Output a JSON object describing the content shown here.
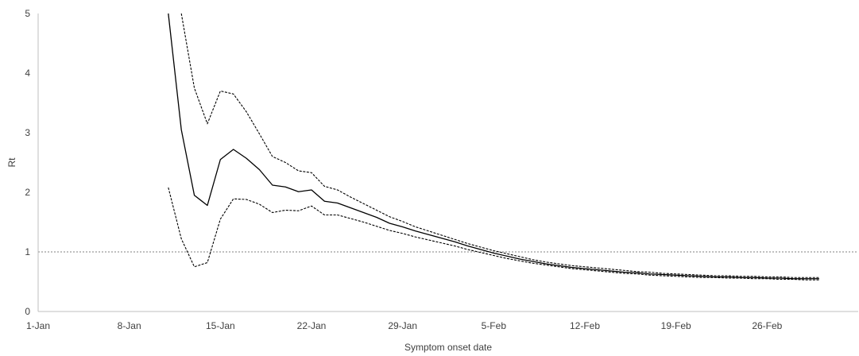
{
  "chart_data": {
    "type": "line",
    "title": "",
    "xlabel": "Symptom onset date",
    "ylabel": "Rt",
    "x_axis": {
      "type": "date",
      "range": [
        "2020-01-01",
        "2020-03-04"
      ],
      "ticks": [
        {
          "date": "2020-01-01",
          "label": "1-Jan"
        },
        {
          "date": "2020-01-08",
          "label": "8-Jan"
        },
        {
          "date": "2020-01-15",
          "label": "15-Jan"
        },
        {
          "date": "2020-01-22",
          "label": "22-Jan"
        },
        {
          "date": "2020-01-29",
          "label": "29-Jan"
        },
        {
          "date": "2020-02-05",
          "label": "5-Feb"
        },
        {
          "date": "2020-02-12",
          "label": "12-Feb"
        },
        {
          "date": "2020-02-19",
          "label": "19-Feb"
        },
        {
          "date": "2020-02-26",
          "label": "26-Feb"
        }
      ]
    },
    "y_axis": {
      "range": [
        0,
        5
      ],
      "ticks": [
        {
          "value": 0,
          "label": "0"
        },
        {
          "value": 1,
          "label": "1"
        },
        {
          "value": 2,
          "label": "2"
        },
        {
          "value": 3,
          "label": "3"
        },
        {
          "value": 4,
          "label": "4"
        },
        {
          "value": 5,
          "label": "5"
        }
      ]
    },
    "grid": false,
    "legend": "none",
    "reference_line": {
      "y": 1,
      "style": "dashed",
      "color": "#808080"
    },
    "series": [
      {
        "role": "estimate",
        "style": "solid",
        "color": "#000000",
        "points": [
          [
            "2020-01-11",
            5.0
          ],
          [
            "2020-01-12",
            3.05
          ],
          [
            "2020-01-13",
            1.95
          ],
          [
            "2020-01-14",
            1.78
          ],
          [
            "2020-01-15",
            2.55
          ],
          [
            "2020-01-16",
            2.72
          ],
          [
            "2020-01-17",
            2.57
          ],
          [
            "2020-01-18",
            2.38
          ],
          [
            "2020-01-19",
            2.12
          ],
          [
            "2020-01-20",
            2.09
          ],
          [
            "2020-01-21",
            2.01
          ],
          [
            "2020-01-22",
            2.04
          ],
          [
            "2020-01-23",
            1.85
          ],
          [
            "2020-01-24",
            1.82
          ],
          [
            "2020-01-25",
            1.74
          ],
          [
            "2020-01-26",
            1.66
          ],
          [
            "2020-01-27",
            1.58
          ],
          [
            "2020-01-28",
            1.48
          ],
          [
            "2020-01-29",
            1.42
          ],
          [
            "2020-01-30",
            1.35
          ],
          [
            "2020-01-31",
            1.29
          ],
          [
            "2020-02-01",
            1.23
          ],
          [
            "2020-02-02",
            1.17
          ],
          [
            "2020-02-03",
            1.1
          ],
          [
            "2020-02-04",
            1.04
          ],
          [
            "2020-02-05",
            0.98
          ],
          [
            "2020-02-06",
            0.93
          ],
          [
            "2020-02-07",
            0.88
          ],
          [
            "2020-02-08",
            0.84
          ],
          [
            "2020-02-09",
            0.8
          ],
          [
            "2020-02-10",
            0.77
          ],
          [
            "2020-02-11",
            0.74
          ],
          [
            "2020-02-12",
            0.72
          ],
          [
            "2020-02-13",
            0.7
          ],
          [
            "2020-02-14",
            0.68
          ],
          [
            "2020-02-15",
            0.66
          ],
          [
            "2020-02-16",
            0.65
          ],
          [
            "2020-02-17",
            0.63
          ],
          [
            "2020-02-18",
            0.62
          ],
          [
            "2020-02-19",
            0.61
          ],
          [
            "2020-02-20",
            0.6
          ],
          [
            "2020-02-21",
            0.59
          ],
          [
            "2020-02-22",
            0.58
          ],
          [
            "2020-02-23",
            0.58
          ],
          [
            "2020-02-24",
            0.57
          ],
          [
            "2020-02-25",
            0.57
          ],
          [
            "2020-02-26",
            0.56
          ],
          [
            "2020-02-27",
            0.56
          ],
          [
            "2020-02-28",
            0.55
          ],
          [
            "2020-02-29",
            0.55
          ],
          [
            "2020-03-01",
            0.55
          ]
        ]
      },
      {
        "role": "upper-bound",
        "style": "dashed",
        "color": "#000000",
        "points": [
          [
            "2020-01-12",
            5.0
          ],
          [
            "2020-01-13",
            3.75
          ],
          [
            "2020-01-14",
            3.15
          ],
          [
            "2020-01-15",
            3.7
          ],
          [
            "2020-01-16",
            3.65
          ],
          [
            "2020-01-17",
            3.35
          ],
          [
            "2020-01-18",
            2.98
          ],
          [
            "2020-01-19",
            2.6
          ],
          [
            "2020-01-20",
            2.5
          ],
          [
            "2020-01-21",
            2.36
          ],
          [
            "2020-01-22",
            2.33
          ],
          [
            "2020-01-23",
            2.1
          ],
          [
            "2020-01-24",
            2.04
          ],
          [
            "2020-01-25",
            1.92
          ],
          [
            "2020-01-26",
            1.81
          ],
          [
            "2020-01-27",
            1.7
          ],
          [
            "2020-01-28",
            1.59
          ],
          [
            "2020-01-29",
            1.51
          ],
          [
            "2020-01-30",
            1.42
          ],
          [
            "2020-01-31",
            1.35
          ],
          [
            "2020-02-01",
            1.28
          ],
          [
            "2020-02-02",
            1.21
          ],
          [
            "2020-02-03",
            1.14
          ],
          [
            "2020-02-04",
            1.08
          ],
          [
            "2020-02-05",
            1.02
          ],
          [
            "2020-02-06",
            0.97
          ],
          [
            "2020-02-07",
            0.92
          ],
          [
            "2020-02-08",
            0.87
          ],
          [
            "2020-02-09",
            0.83
          ],
          [
            "2020-02-10",
            0.8
          ],
          [
            "2020-02-11",
            0.77
          ],
          [
            "2020-02-12",
            0.75
          ],
          [
            "2020-02-13",
            0.73
          ],
          [
            "2020-02-14",
            0.71
          ],
          [
            "2020-02-15",
            0.69
          ],
          [
            "2020-02-16",
            0.67
          ],
          [
            "2020-02-17",
            0.66
          ],
          [
            "2020-02-18",
            0.64
          ],
          [
            "2020-02-19",
            0.63
          ],
          [
            "2020-02-20",
            0.62
          ],
          [
            "2020-02-21",
            0.61
          ],
          [
            "2020-02-22",
            0.6
          ],
          [
            "2020-02-23",
            0.6
          ],
          [
            "2020-02-24",
            0.59
          ],
          [
            "2020-02-25",
            0.59
          ],
          [
            "2020-02-26",
            0.58
          ],
          [
            "2020-02-27",
            0.58
          ],
          [
            "2020-02-28",
            0.57
          ],
          [
            "2020-02-29",
            0.57
          ],
          [
            "2020-03-01",
            0.57
          ]
        ]
      },
      {
        "role": "lower-bound",
        "style": "dashed",
        "color": "#000000",
        "points": [
          [
            "2020-01-11",
            2.08
          ],
          [
            "2020-01-12",
            1.22
          ],
          [
            "2020-01-13",
            0.75
          ],
          [
            "2020-01-14",
            0.82
          ],
          [
            "2020-01-15",
            1.55
          ],
          [
            "2020-01-16",
            1.89
          ],
          [
            "2020-01-17",
            1.88
          ],
          [
            "2020-01-18",
            1.8
          ],
          [
            "2020-01-19",
            1.66
          ],
          [
            "2020-01-20",
            1.7
          ],
          [
            "2020-01-21",
            1.69
          ],
          [
            "2020-01-22",
            1.77
          ],
          [
            "2020-01-23",
            1.62
          ],
          [
            "2020-01-24",
            1.62
          ],
          [
            "2020-01-25",
            1.56
          ],
          [
            "2020-01-26",
            1.5
          ],
          [
            "2020-01-27",
            1.43
          ],
          [
            "2020-01-28",
            1.36
          ],
          [
            "2020-01-29",
            1.31
          ],
          [
            "2020-01-30",
            1.25
          ],
          [
            "2020-01-31",
            1.2
          ],
          [
            "2020-02-01",
            1.15
          ],
          [
            "2020-02-02",
            1.1
          ],
          [
            "2020-02-03",
            1.04
          ],
          [
            "2020-02-04",
            0.99
          ],
          [
            "2020-02-05",
            0.94
          ],
          [
            "2020-02-06",
            0.89
          ],
          [
            "2020-02-07",
            0.85
          ],
          [
            "2020-02-08",
            0.81
          ],
          [
            "2020-02-09",
            0.78
          ],
          [
            "2020-02-10",
            0.75
          ],
          [
            "2020-02-11",
            0.72
          ],
          [
            "2020-02-12",
            0.7
          ],
          [
            "2020-02-13",
            0.68
          ],
          [
            "2020-02-14",
            0.66
          ],
          [
            "2020-02-15",
            0.64
          ],
          [
            "2020-02-16",
            0.63
          ],
          [
            "2020-02-17",
            0.61
          ],
          [
            "2020-02-18",
            0.6
          ],
          [
            "2020-02-19",
            0.59
          ],
          [
            "2020-02-20",
            0.58
          ],
          [
            "2020-02-21",
            0.57
          ],
          [
            "2020-02-22",
            0.57
          ],
          [
            "2020-02-23",
            0.56
          ],
          [
            "2020-02-24",
            0.56
          ],
          [
            "2020-02-25",
            0.55
          ],
          [
            "2020-02-26",
            0.55
          ],
          [
            "2020-02-27",
            0.54
          ],
          [
            "2020-02-28",
            0.54
          ],
          [
            "2020-02-29",
            0.53
          ],
          [
            "2020-03-01",
            0.53
          ]
        ]
      }
    ]
  }
}
